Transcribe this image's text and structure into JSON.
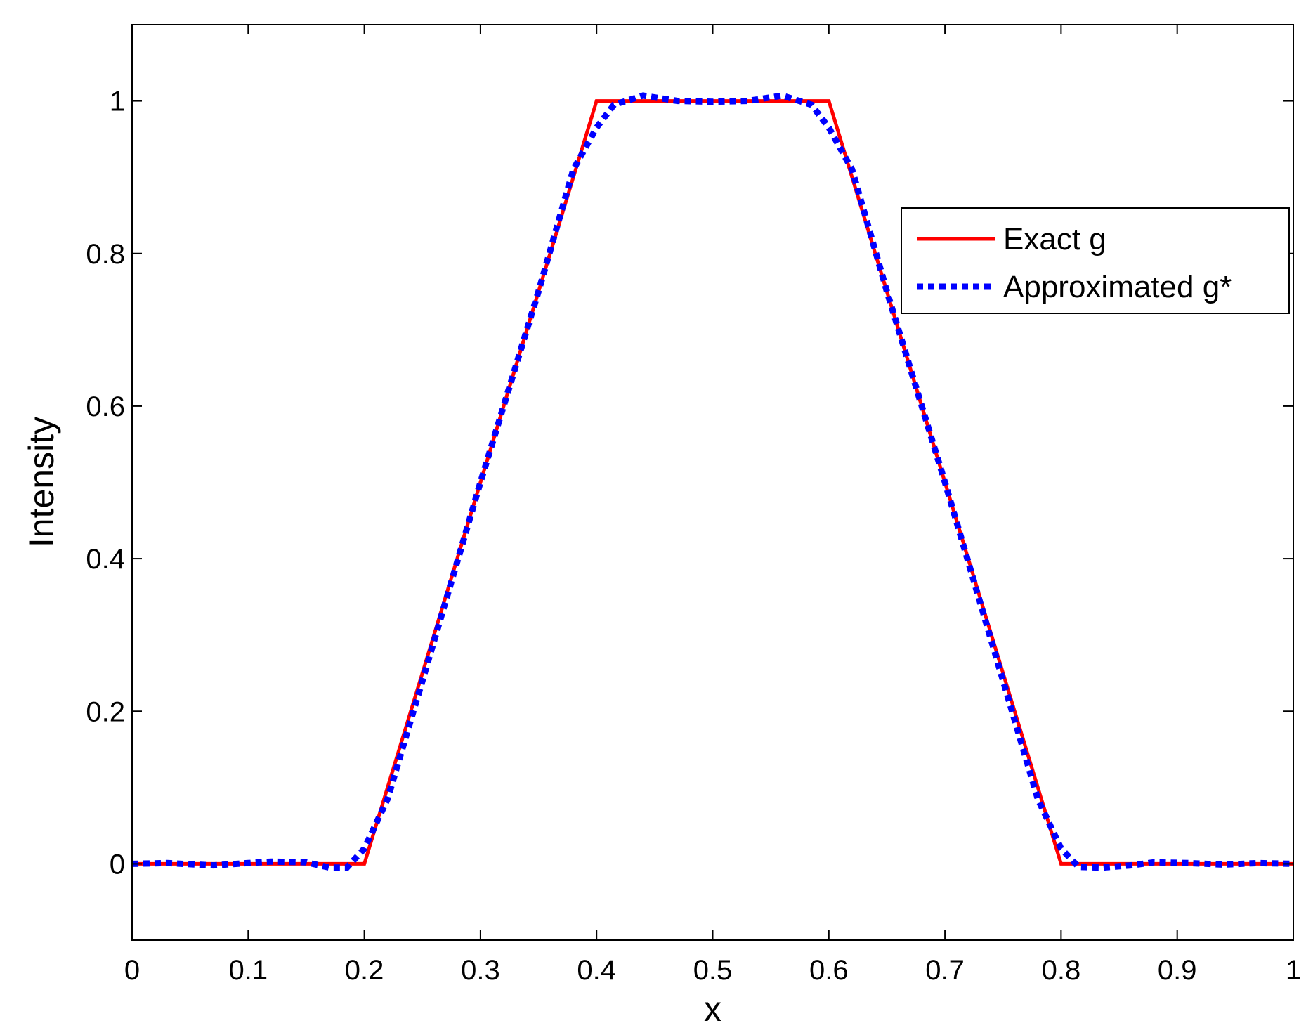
{
  "chart_data": {
    "type": "line",
    "title": "",
    "xlabel": "x",
    "ylabel": "Intensity",
    "xlim": [
      0,
      1
    ],
    "ylim": [
      -0.1,
      1.1
    ],
    "xticks": [
      0,
      0.1,
      0.2,
      0.3,
      0.4,
      0.5,
      0.6,
      0.7,
      0.8,
      0.9,
      1
    ],
    "xtick_labels": [
      "0",
      "0.1",
      "0.2",
      "0.3",
      "0.4",
      "0.5",
      "0.6",
      "0.7",
      "0.8",
      "0.9",
      "1"
    ],
    "yticks": [
      0,
      0.2,
      0.4,
      0.6,
      0.8,
      1
    ],
    "ytick_labels": [
      "0",
      "0.2",
      "0.4",
      "0.6",
      "0.8",
      "1"
    ],
    "grid": false,
    "legend_position": "top-right",
    "series": [
      {
        "name": "Exact g",
        "color": "#ff0000",
        "style": "solid",
        "x": [
          0,
          0.2,
          0.4,
          0.6,
          0.8,
          1
        ],
        "y": [
          0,
          0,
          1,
          1,
          0,
          0
        ]
      },
      {
        "name": "Approximated g*",
        "color": "#0000ff",
        "style": "dotted",
        "x": [
          0,
          0.03,
          0.07,
          0.1,
          0.12,
          0.15,
          0.17,
          0.185,
          0.2,
          0.22,
          0.25,
          0.3,
          0.35,
          0.38,
          0.4,
          0.415,
          0.44,
          0.47,
          0.5,
          0.53,
          0.56,
          0.585,
          0.6,
          0.62,
          0.65,
          0.7,
          0.75,
          0.78,
          0.8,
          0.815,
          0.835,
          0.86,
          0.88,
          0.91,
          0.94,
          0.97,
          1
        ],
        "y": [
          0,
          0.001,
          -0.002,
          0.001,
          0.003,
          0.002,
          -0.005,
          -0.005,
          0.02,
          0.085,
          0.24,
          0.5,
          0.75,
          0.91,
          0.965,
          0.995,
          1.007,
          1.0,
          0.999,
          1.0,
          1.007,
          0.995,
          0.965,
          0.91,
          0.75,
          0.5,
          0.24,
          0.085,
          0.02,
          -0.004,
          -0.005,
          -0.002,
          0.002,
          0.001,
          -0.001,
          0.001,
          0
        ]
      }
    ]
  }
}
